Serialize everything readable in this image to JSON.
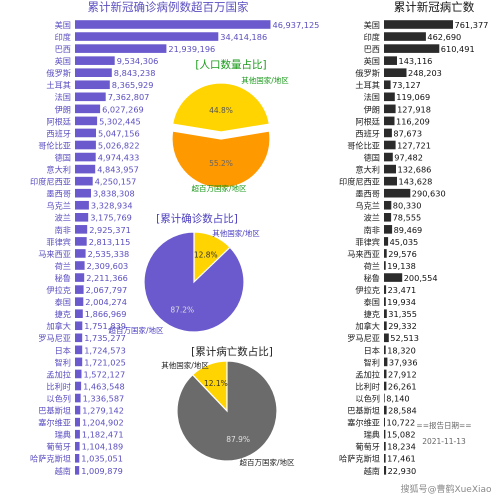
{
  "colors": {
    "cases_bar": "#6a5acd",
    "cases_text": "#5b4fc0",
    "deaths_bar": "#2b2b2b",
    "pie_top": "#ffd400",
    "pie_orange": "#ff9900",
    "pie_purple": "#6a5acd",
    "pie_gray": "#6b6b6b"
  },
  "watermark": "搜狐号@曹鹤XueXiao",
  "report_label": "==报告日期==",
  "report_date": "2021-11-13",
  "chart_data": [
    {
      "type": "bar",
      "orientation": "horizontal",
      "title": "累计新冠确诊病例数超百万国家",
      "categories": [
        "美国",
        "印度",
        "巴西",
        "英国",
        "俄罗斯",
        "土耳其",
        "法国",
        "伊朗",
        "阿根廷",
        "西班牙",
        "哥伦比亚",
        "德国",
        "意大利",
        "印度尼西亚",
        "墨西哥",
        "乌克兰",
        "波兰",
        "南非",
        "菲律宾",
        "马来西亚",
        "荷兰",
        "秘鲁",
        "伊拉克",
        "泰国",
        "捷克",
        "加拿大",
        "罗马尼亚",
        "日本",
        "智利",
        "孟加拉",
        "比利时",
        "以色列",
        "巴基斯坦",
        "塞尔维亚",
        "瑞典",
        "葡萄牙",
        "哈萨克斯坦",
        "越南"
      ],
      "values": [
        46937125,
        34414186,
        21939196,
        9534306,
        8843238,
        8365929,
        7362807,
        6027269,
        5302445,
        5047156,
        5026822,
        4974433,
        4843957,
        4250157,
        3838308,
        3328934,
        3175769,
        2925371,
        2813115,
        2535338,
        2309603,
        2211366,
        2067797,
        2004274,
        1866969,
        1751839,
        1735277,
        1724573,
        1721025,
        1572127,
        1463548,
        1336587,
        1279142,
        1204902,
        1182471,
        1104189,
        1035051,
        1009879
      ],
      "value_labels": [
        "46,937,125",
        "34,414,186",
        "21,939,196",
        "9,534,306",
        "8,843,238",
        "8,365,929",
        "7,362,807",
        "6,027,269",
        "5,302,445",
        "5,047,156",
        "5,026,822",
        "4,974,433",
        "4,843,957",
        "4,250,157",
        "3,838,308",
        "3,328,934",
        "3,175,769",
        "2,925,371",
        "2,813,115",
        "2,535,338",
        "2,309,603",
        "2,211,366",
        "2,067,797",
        "2,004,274",
        "1,866,969",
        "1,751,839",
        "1,735,277",
        "1,724,573",
        "1,721,025",
        "1,572,127",
        "1,463,548",
        "1,336,587",
        "1,279,142",
        "1,204,902",
        "1,182,471",
        "1,104,189",
        "1,035,051",
        "1,009,879"
      ]
    },
    {
      "type": "bar",
      "orientation": "horizontal",
      "title": "累计新冠病亡数",
      "categories": [
        "美国",
        "印度",
        "巴西",
        "英国",
        "俄罗斯",
        "土耳其",
        "法国",
        "伊朗",
        "阿根廷",
        "西班牙",
        "哥伦比亚",
        "德国",
        "意大利",
        "印度尼西亚",
        "墨西哥",
        "乌克兰",
        "波兰",
        "南非",
        "菲律宾",
        "马来西亚",
        "荷兰",
        "秘鲁",
        "伊拉克",
        "泰国",
        "捷克",
        "加拿大",
        "罗马尼亚",
        "日本",
        "智利",
        "孟加拉",
        "比利时",
        "以色列",
        "巴基斯坦",
        "塞尔维亚",
        "瑞典",
        "葡萄牙",
        "哈萨克斯坦",
        "越南"
      ],
      "values": [
        761377,
        462690,
        610491,
        143116,
        248203,
        73127,
        119069,
        127918,
        116209,
        87673,
        127721,
        97482,
        132686,
        143628,
        290630,
        80330,
        78555,
        89469,
        45035,
        29576,
        19138,
        200554,
        23471,
        19934,
        31355,
        29332,
        52513,
        18320,
        37936,
        27912,
        26261,
        8140,
        28584,
        10722,
        15082,
        18234,
        17461,
        22930
      ],
      "value_labels": [
        "761,377",
        "462,690",
        "610,491",
        "143,116",
        "248,203",
        "73,127",
        "119,069",
        "127,918",
        "116,209",
        "87,673",
        "127,721",
        "97,482",
        "132,686",
        "143,628",
        "290,630",
        "80,330",
        "78,555",
        "89,469",
        "45,035",
        "29,576",
        "19,138",
        "200,554",
        "23,471",
        "19,934",
        "31,355",
        "29,332",
        "52,513",
        "18,320",
        "37,936",
        "27,912",
        "26,261",
        "8,140",
        "28,584",
        "10,722",
        "15,082",
        "18,234",
        "17,461",
        "22,930"
      ]
    },
    {
      "type": "pie",
      "title": "[人口数量占比]",
      "labels": [
        "其他国家/地区",
        "超百万国家/地区"
      ],
      "values": [
        44.8,
        55.2
      ],
      "value_labels": [
        "44.8%",
        "55.2%"
      ],
      "exploded": [
        "超百万国家/地区"
      ]
    },
    {
      "type": "pie",
      "title": "[累计确诊数占比]",
      "labels": [
        "其他国家/地区",
        "超百万国家/地区"
      ],
      "values": [
        12.8,
        87.2
      ],
      "value_labels": [
        "12.8%",
        "87.2%"
      ]
    },
    {
      "type": "pie",
      "title": "[累计病亡数占比]",
      "labels": [
        "其他国家/地区",
        "超百万国家/地区"
      ],
      "values": [
        12.1,
        87.9
      ],
      "value_labels": [
        "12.1%",
        "87.9%"
      ]
    }
  ]
}
